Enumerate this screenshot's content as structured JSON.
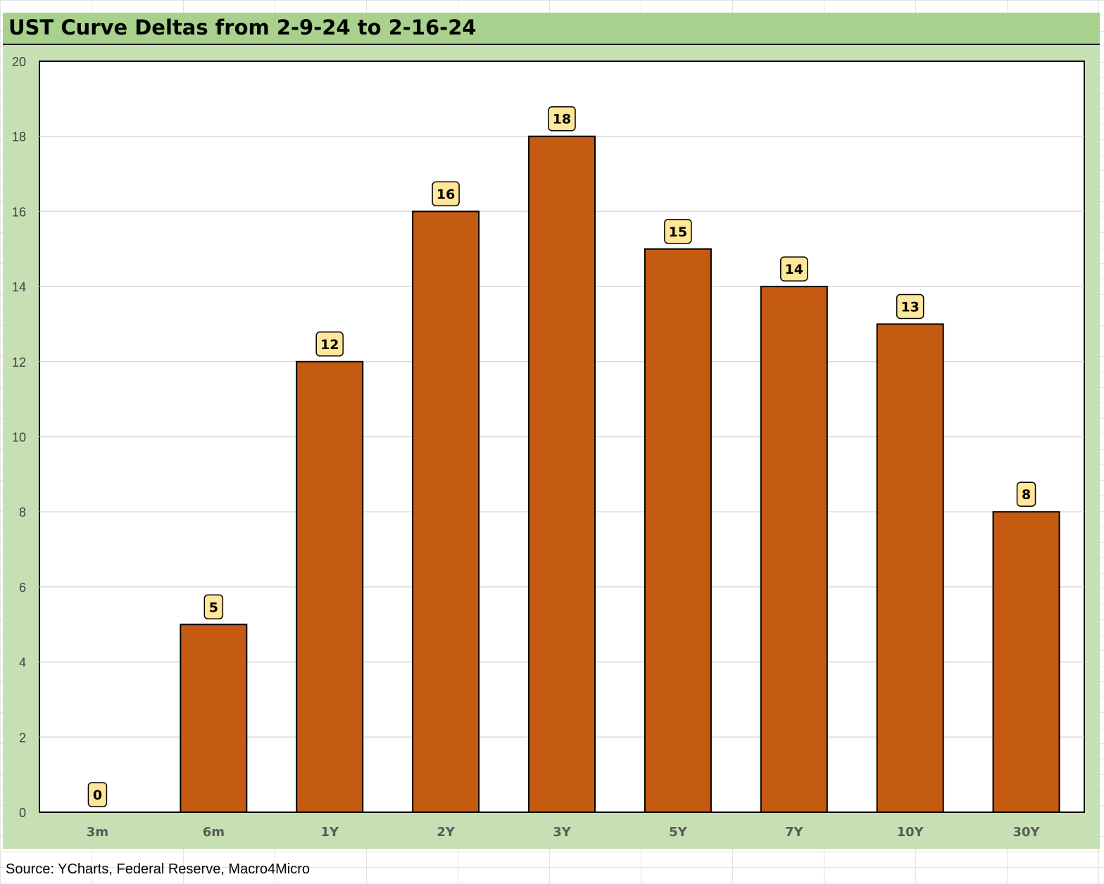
{
  "title": "UST Curve Deltas from 2-9-24 to 2-16-24",
  "source": "Source: YCharts, Federal Reserve, Macro4Micro",
  "colors": {
    "bar": "#c55a11",
    "label_bg": "#ffe699",
    "panel_bg": "#c6e0b4",
    "title_bg": "#a9d18e"
  },
  "chart_data": {
    "type": "bar",
    "title": "UST Curve Deltas from 2-9-24 to 2-16-24",
    "xlabel": "",
    "ylabel": "",
    "categories": [
      "3m",
      "6m",
      "1Y",
      "2Y",
      "3Y",
      "5Y",
      "7Y",
      "10Y",
      "30Y"
    ],
    "values": [
      0,
      5,
      12,
      16,
      18,
      15,
      14,
      13,
      8
    ],
    "data_labels": [
      "0",
      "5",
      "12",
      "16",
      "18",
      "15",
      "14",
      "13",
      "8"
    ],
    "ylim": [
      0,
      20
    ],
    "yticks": [
      0,
      2,
      4,
      6,
      8,
      10,
      12,
      14,
      16,
      18,
      20
    ],
    "ytick_labels": [
      "0",
      "2",
      "4",
      "6",
      "8",
      "10",
      "12",
      "14",
      "16",
      "18",
      "20"
    ],
    "grid": true,
    "legend": "none"
  }
}
